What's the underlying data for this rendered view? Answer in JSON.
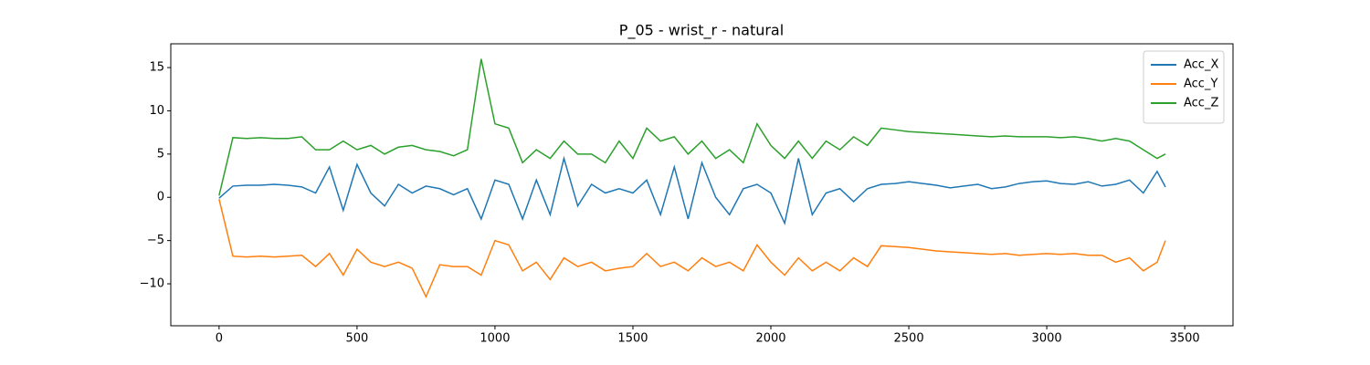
{
  "chart_data": {
    "type": "line",
    "title": "P_05 - wrist_r - natural",
    "x": [
      0,
      50,
      100,
      150,
      200,
      250,
      300,
      350,
      400,
      450,
      500,
      550,
      600,
      650,
      700,
      750,
      800,
      850,
      900,
      950,
      1000,
      1050,
      1100,
      1150,
      1200,
      1250,
      1300,
      1350,
      1400,
      1450,
      1500,
      1550,
      1600,
      1650,
      1700,
      1750,
      1800,
      1850,
      1900,
      1950,
      2000,
      2050,
      2100,
      2150,
      2200,
      2250,
      2300,
      2350,
      2400,
      2450,
      2500,
      2550,
      2600,
      2650,
      2700,
      2750,
      2800,
      2850,
      2900,
      2950,
      3000,
      3050,
      3100,
      3150,
      3200,
      3250,
      3300,
      3350,
      3400,
      3430
    ],
    "series": [
      {
        "name": "Acc_X",
        "color": "#1f77b4",
        "values": [
          -0.1,
          1.3,
          1.4,
          1.4,
          1.5,
          1.4,
          1.2,
          0.5,
          3.5,
          -1.5,
          3.8,
          0.5,
          -1.0,
          1.5,
          0.5,
          1.3,
          1.0,
          0.3,
          1.0,
          -2.5,
          2.0,
          1.5,
          -2.5,
          2.0,
          -2.0,
          4.5,
          -1.0,
          1.5,
          0.5,
          1.0,
          0.5,
          2.0,
          -2.0,
          3.5,
          -2.5,
          4.0,
          0.0,
          -2.0,
          1.0,
          1.5,
          0.5,
          -3.0,
          4.5,
          -2.0,
          0.5,
          1.0,
          -0.5,
          1.0,
          1.5,
          1.6,
          1.8,
          1.6,
          1.4,
          1.1,
          1.3,
          1.5,
          1.0,
          1.2,
          1.6,
          1.8,
          1.9,
          1.6,
          1.5,
          1.8,
          1.3,
          1.5,
          2.0,
          0.5,
          3.0,
          1.2
        ]
      },
      {
        "name": "Acc_Y",
        "color": "#ff7f0e",
        "values": [
          -0.2,
          -6.8,
          -6.9,
          -6.8,
          -6.9,
          -6.8,
          -6.7,
          -8.0,
          -6.5,
          -9.0,
          -6.0,
          -7.5,
          -8.0,
          -7.5,
          -8.2,
          -11.5,
          -7.8,
          -8.0,
          -8.0,
          -9.0,
          -5.0,
          -5.5,
          -8.5,
          -7.5,
          -9.5,
          -7.0,
          -8.0,
          -7.5,
          -8.5,
          -8.2,
          -8.0,
          -6.5,
          -8.0,
          -7.5,
          -8.5,
          -7.0,
          -8.0,
          -7.5,
          -8.5,
          -5.5,
          -7.5,
          -9.0,
          -7.0,
          -8.5,
          -7.5,
          -8.5,
          -7.0,
          -8.0,
          -5.6,
          -5.7,
          -5.8,
          -6.0,
          -6.2,
          -6.3,
          -6.4,
          -6.5,
          -6.6,
          -6.5,
          -6.7,
          -6.6,
          -6.5,
          -6.6,
          -6.5,
          -6.7,
          -6.7,
          -7.5,
          -7.0,
          -8.5,
          -7.5,
          -5.0
        ]
      },
      {
        "name": "Acc_Z",
        "color": "#2ca02c",
        "values": [
          0.2,
          6.9,
          6.8,
          6.9,
          6.8,
          6.8,
          7.0,
          5.5,
          5.5,
          6.5,
          5.5,
          6.0,
          5.0,
          5.8,
          6.0,
          5.5,
          5.3,
          4.8,
          5.5,
          16.0,
          8.5,
          8.0,
          4.0,
          5.5,
          4.5,
          6.5,
          5.0,
          5.0,
          4.0,
          6.5,
          4.5,
          8.0,
          6.5,
          7.0,
          5.0,
          6.5,
          4.5,
          5.5,
          4.0,
          8.5,
          6.0,
          4.5,
          6.5,
          4.5,
          6.5,
          5.5,
          7.0,
          6.0,
          8.0,
          7.8,
          7.6,
          7.5,
          7.4,
          7.3,
          7.2,
          7.1,
          7.0,
          7.1,
          7.0,
          7.0,
          7.0,
          6.9,
          7.0,
          6.8,
          6.5,
          6.8,
          6.5,
          5.5,
          4.5,
          5.0
        ]
      }
    ],
    "xlim": [
      -175,
      3675
    ],
    "ylim": [
      -14.85,
      17.75
    ],
    "xticks": [
      0,
      500,
      1000,
      1500,
      2000,
      2500,
      3000,
      3500
    ],
    "yticks": [
      {
        "value": -10,
        "label": "−10"
      },
      {
        "value": -5,
        "label": "−5"
      },
      0,
      5,
      10,
      15
    ],
    "legend": "upper right"
  }
}
